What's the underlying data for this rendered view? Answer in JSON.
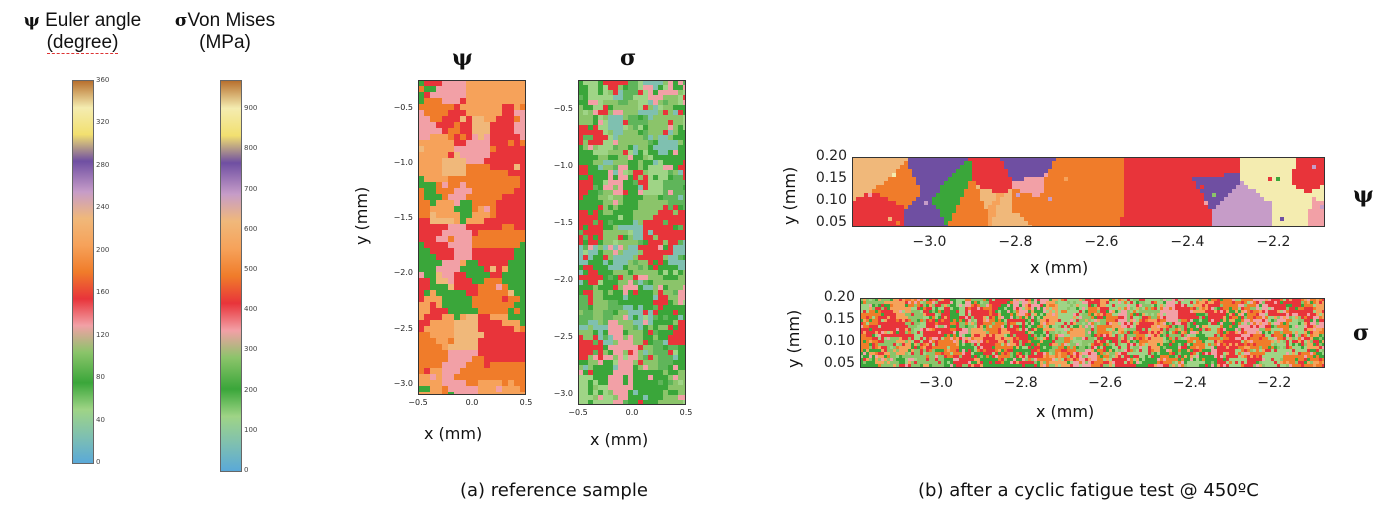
{
  "colorbars": [
    {
      "symbol": "ψ",
      "title_line1": "Euler angle",
      "title_line2": "(degree)",
      "ticks": [
        "360",
        "320",
        "280",
        "240",
        "200",
        "160",
        "120",
        "80",
        "40",
        "0"
      ],
      "vmin": 0,
      "vmax": 360
    },
    {
      "symbol": "σ",
      "title_line1": "Von Mises",
      "title_line2": "(MPa)",
      "ticks": [
        "900",
        "800",
        "700",
        "600",
        "500",
        "400",
        "300",
        "200",
        "100",
        "0"
      ],
      "vmin": 0,
      "vmax": 970
    }
  ],
  "colormap": [
    "#5aa9d8",
    "#7fc0b0",
    "#9fd486",
    "#3aa63a",
    "#8bc46a",
    "#f2a0a6",
    "#e8343a",
    "#f07c2a",
    "#f6a25a",
    "#f0b87a",
    "#c69cc8",
    "#6f4fa2",
    "#f2e070",
    "#f4ecb0",
    "#b8702e"
  ],
  "panel_a": {
    "caption": "(a) reference sample",
    "maps": [
      {
        "title": "ψ",
        "xlabel": "x (mm)",
        "ylabel": "y (mm)",
        "xticks": [
          "−0.5",
          "0.0",
          "0.5"
        ],
        "yticks": [
          "−0.5",
          "−1.0",
          "−1.5",
          "−2.0",
          "−2.5",
          "−3.0"
        ]
      },
      {
        "title": "σ",
        "xlabel": "x (mm)",
        "xticks": [
          "−0.5",
          "0.0",
          "0.5"
        ],
        "yticks": [
          "−0.5",
          "−1.0",
          "−1.5",
          "−2.0",
          "−2.5",
          "−3.0"
        ]
      }
    ]
  },
  "panel_b": {
    "caption": "(b) after a cyclic fatigue test @ 450ºC",
    "maps": [
      {
        "symbol": "ψ",
        "xlabel": "x (mm)",
        "ylabel": "y (mm)",
        "xticks": [
          "−3.0",
          "−2.8",
          "−2.6",
          "−2.4",
          "−2.2"
        ],
        "yticks": [
          "0.20",
          "0.15",
          "0.10",
          "0.05"
        ]
      },
      {
        "symbol": "σ",
        "xlabel": "x (mm)",
        "ylabel": "y (mm)",
        "xticks": [
          "−3.0",
          "−2.8",
          "−2.6",
          "−2.4",
          "−2.2"
        ],
        "yticks": [
          "0.20",
          "0.15",
          "0.10",
          "0.05"
        ]
      }
    ]
  },
  "chart_data": [
    {
      "type": "heatmap",
      "title": "ψ",
      "xlabel": "x (mm)",
      "ylabel": "y (mm)",
      "xlim": [
        -0.5,
        0.5
      ],
      "ylim": [
        -3.1,
        -0.25
      ],
      "colorbar_range": [
        0,
        360
      ],
      "colorbar_label": "Euler angle (degree)"
    },
    {
      "type": "heatmap",
      "title": "σ",
      "xlabel": "x (mm)",
      "xlim": [
        -0.5,
        0.5
      ],
      "ylim": [
        -3.1,
        -0.25
      ],
      "colorbar_range": [
        0,
        970
      ],
      "colorbar_label": "Von Mises (MPa)"
    },
    {
      "type": "heatmap",
      "xlabel": "x (mm)",
      "ylabel": "y (mm)",
      "xlim": [
        -3.18,
        -2.08
      ],
      "ylim": [
        0.04,
        0.2
      ],
      "series_label": "ψ"
    },
    {
      "type": "heatmap",
      "xlabel": "x (mm)",
      "ylabel": "y (mm)",
      "xlim": [
        -3.18,
        -2.08
      ],
      "ylim": [
        0.04,
        0.2
      ],
      "series_label": "σ"
    }
  ]
}
